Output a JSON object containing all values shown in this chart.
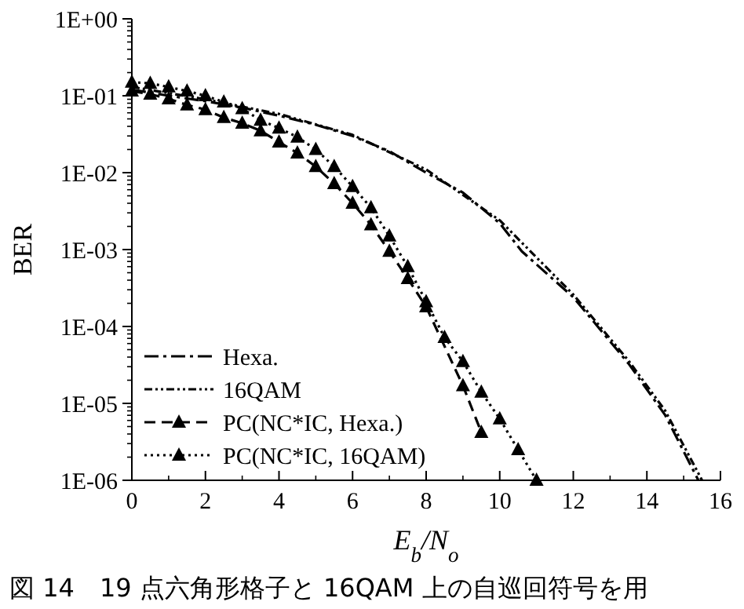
{
  "chart_data": {
    "type": "line",
    "xlabel": "E$_{b}$/N$_{o}$",
    "ylabel": "BER",
    "log": "y",
    "xlim": [
      0,
      16
    ],
    "xticks": [
      0,
      2,
      4,
      6,
      8,
      10,
      12,
      14,
      16
    ],
    "ylim": [
      1e-06,
      1
    ],
    "yticks": [
      {
        "value": 1,
        "label": "1E+00"
      },
      {
        "value": 0.1,
        "label": "1E-01"
      },
      {
        "value": 0.01,
        "label": "1E-02"
      },
      {
        "value": 0.001,
        "label": "1E-03"
      },
      {
        "value": 0.0001,
        "label": "1E-04"
      },
      {
        "value": 1e-05,
        "label": "1E-05"
      },
      {
        "value": 1e-06,
        "label": "1E-06"
      }
    ],
    "grid": false,
    "legend": "bottom left",
    "annotations": [
      "図 14　19 点六角形格子と 16QAM 上の自巡回符号を用"
    ],
    "series": [
      {
        "name": "Hexa.",
        "color": "#000000",
        "line_style": "dashdot",
        "marker": "none",
        "x": [
          0,
          1,
          2,
          3,
          4,
          5,
          6,
          7,
          8,
          9,
          10,
          10.6,
          12,
          13.5,
          14.5,
          15.4
        ],
        "values": [
          0.12,
          0.1,
          0.085,
          0.07,
          0.055,
          0.042,
          0.03,
          0.019,
          0.01,
          0.0055,
          0.0022,
          0.00095,
          0.00024,
          3.3e-05,
          7e-06,
          1e-06
        ]
      },
      {
        "name": "16QAM",
        "color": "#000000",
        "line_style": "dashdotdot",
        "marker": "none",
        "x": [
          0,
          2,
          4,
          6,
          8,
          10,
          12,
          13.5,
          14.5,
          15.5
        ],
        "values": [
          0.13,
          0.09,
          0.058,
          0.031,
          0.011,
          0.0024,
          0.00026,
          3.6e-05,
          8e-06,
          1e-06
        ]
      },
      {
        "name": "PC(NC*IC, Hexa.)",
        "color": "#000000",
        "line_style": "dashed",
        "marker": "triangle",
        "x": [
          0,
          0.5,
          1,
          1.5,
          2,
          2.5,
          3,
          3.5,
          4,
          4.5,
          5,
          5.5,
          6,
          6.5,
          7,
          7.5,
          8,
          8.5,
          9,
          9.5
        ],
        "values": [
          0.115,
          0.105,
          0.091,
          0.076,
          0.066,
          0.052,
          0.044,
          0.035,
          0.025,
          0.018,
          0.012,
          0.0072,
          0.004,
          0.0021,
          0.00095,
          0.00042,
          0.00018,
          null,
          1.7e-05,
          4.2e-06
        ]
      },
      {
        "name": "PC(NC*IC, 16QAM)",
        "color": "#000000",
        "line_style": "dotted",
        "marker": "triangle",
        "x": [
          0,
          0.5,
          1,
          1.5,
          2,
          2.5,
          3,
          3.5,
          4,
          4.5,
          5,
          5.5,
          6,
          6.5,
          7,
          7.5,
          8,
          8.5,
          9,
          9.5,
          10,
          10.5,
          11
        ],
        "values": [
          0.15,
          0.145,
          0.13,
          0.115,
          0.1,
          0.083,
          0.068,
          0.048,
          0.038,
          0.029,
          0.02,
          0.012,
          0.0066,
          0.0035,
          0.0015,
          0.0006,
          0.00021,
          7.2e-05,
          3.5e-05,
          1.4e-05,
          6.3e-06,
          2.5e-06,
          1e-06
        ]
      }
    ]
  }
}
